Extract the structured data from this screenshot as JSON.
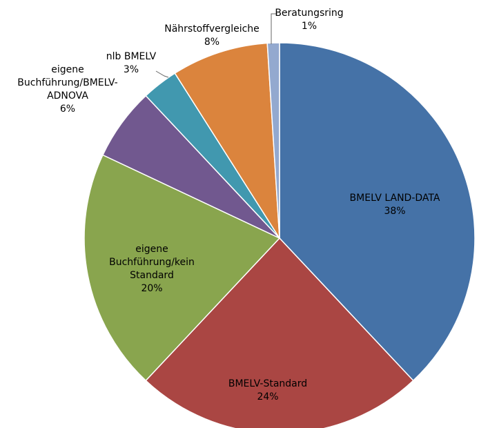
{
  "chart_data": {
    "type": "pie",
    "categories": [
      "BMELV LAND-DATA",
      "BMELV-Standard",
      "eigene Buchführung/kein Standard",
      "eigene Buchführung/BMELV-ADNOVA",
      "nlb BMELV",
      "Nährstoffvergleiche",
      "Beratungsring"
    ],
    "values": [
      38,
      24,
      20,
      6,
      3,
      8,
      1
    ],
    "value_labels": [
      "38%",
      "24%",
      "20%",
      "6%",
      "3%",
      "8%",
      "1%"
    ],
    "colors": [
      "#4572a7",
      "#aa4643",
      "#89a54e",
      "#71588f",
      "#4198af",
      "#db843d",
      "#93a9cf"
    ]
  }
}
